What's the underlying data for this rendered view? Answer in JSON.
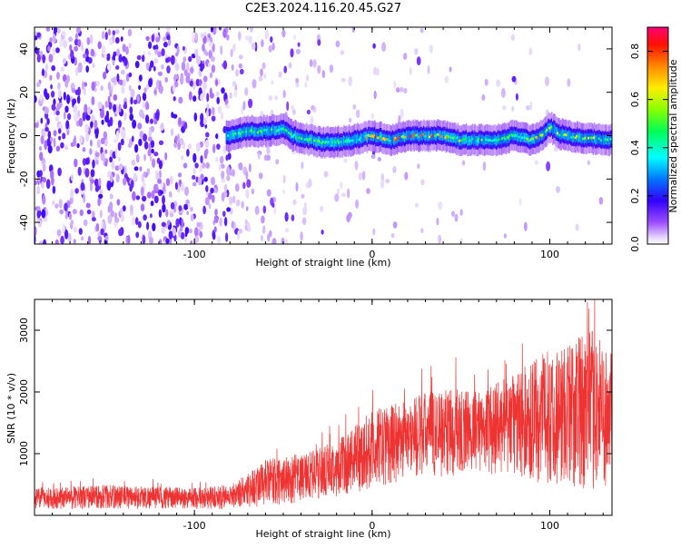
{
  "figure": {
    "title": "C2E3.2024.116.20.45.G27"
  },
  "chart_data": [
    {
      "type": "heatmap",
      "xlabel": "Height of straight line (km)",
      "ylabel": "Frequency (Hz)",
      "xlim": [
        -190,
        135
      ],
      "ylim": [
        -50,
        50
      ],
      "xticks": [
        -100,
        0,
        100
      ],
      "yticks": [
        -40,
        -20,
        0,
        20,
        40
      ],
      "grid": false,
      "colorbar": {
        "label": "Normalized spectral amplitude",
        "range": [
          0,
          0.9
        ],
        "ticks": [
          0.0,
          0.2,
          0.4,
          0.6,
          0.8
        ],
        "colormap": [
          "#ffffff",
          "#d9b8f7",
          "#7b00ff",
          "#0000ff",
          "#00ffff",
          "#00ff00",
          "#ffff00",
          "#ff8800",
          "#ff0000",
          "#ff0066"
        ]
      },
      "signal_trace": {
        "description_x": [
          -80,
          -70,
          -60,
          -50,
          -45,
          -40,
          -30,
          -20,
          -10,
          0,
          10,
          20,
          30,
          40,
          50,
          60,
          70,
          80,
          90,
          95,
          100,
          105,
          110,
          120,
          130
        ],
        "freq": [
          0,
          2,
          2,
          3,
          0,
          -1,
          -3,
          -3,
          -2,
          0,
          -2,
          0,
          0,
          0,
          -2,
          -2,
          -2,
          0,
          -2,
          0,
          4,
          1,
          0,
          -1,
          -2
        ]
      }
    },
    {
      "type": "line",
      "xlabel": "Height of straight line (km)",
      "ylabel": "SNR (10 * v/v)",
      "xlim": [
        -190,
        135
      ],
      "ylim": [
        0,
        3500
      ],
      "xticks": [
        -100,
        0,
        100
      ],
      "yticks": [
        1000,
        2000,
        3000
      ],
      "grid": false,
      "series": [
        {
          "color": "#ee3333",
          "envelope_x": [
            -190,
            -150,
            -100,
            -80,
            -60,
            -40,
            -20,
            0,
            20,
            40,
            60,
            80,
            100,
            115,
            125,
            135
          ],
          "envelope_low": [
            100,
            100,
            100,
            100,
            150,
            200,
            300,
            400,
            600,
            600,
            700,
            600,
            500,
            400,
            400,
            500
          ],
          "envelope_high": [
            450,
            500,
            450,
            500,
            900,
            1000,
            1200,
            1700,
            1900,
            2100,
            2000,
            2300,
            2700,
            2900,
            3000,
            2600
          ]
        }
      ]
    }
  ]
}
